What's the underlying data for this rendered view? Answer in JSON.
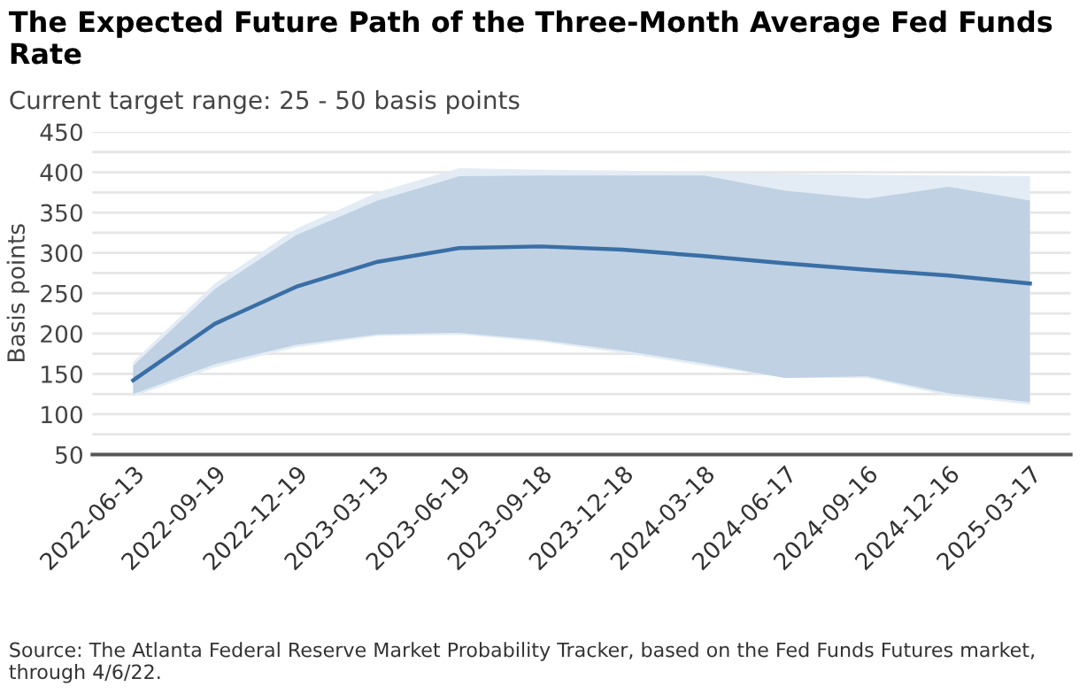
{
  "chart_data": {
    "type": "line",
    "title": "The Expected Future Path of the Three-Month Average Fed Funds Rate",
    "subtitle": "Current target range: 25 - 50 basis points",
    "ylabel": "Basis points",
    "annotations": [
      "Source: The Atlanta Federal Reserve Market Probability Tracker, based on the Fed Funds Futures market, through 4/6/22."
    ],
    "categories": [
      "2022-06-13",
      "2022-09-19",
      "2022-12-19",
      "2023-03-13",
      "2023-06-19",
      "2023-09-18",
      "2023-12-18",
      "2024-03-18",
      "2024-06-17",
      "2024-09-16",
      "2024-12-16",
      "2025-03-17"
    ],
    "series": [
      {
        "color": "#e3ecf5",
        "values": [
          null,
          null,
          null,
          null,
          null,
          null,
          null,
          null,
          null,
          null,
          null,
          null
        ],
        "upper": [
          165,
          262,
          330,
          375,
          405,
          403,
          402,
          400,
          398,
          397,
          396,
          395
        ],
        "lower": [
          122,
          158,
          183,
          197,
          199,
          190,
          176,
          160,
          145,
          145,
          123,
          112
        ]
      },
      {
        "color": "#bfd1e3",
        "values": [
          null,
          null,
          null,
          null,
          null,
          null,
          null,
          null,
          null,
          null,
          null,
          null
        ],
        "upper": [
          160,
          255,
          322,
          365,
          395,
          396,
          396,
          396,
          377,
          367,
          382,
          365
        ],
        "lower": [
          125,
          162,
          186,
          199,
          201,
          192,
          179,
          163,
          145,
          147,
          126,
          115
        ]
      },
      {
        "color": "#3a6ea5",
        "values": [
          142,
          212,
          258,
          289,
          306,
          308,
          304,
          296,
          287,
          279,
          272,
          262
        ]
      }
    ],
    "ylim": [
      50,
      450
    ],
    "yticks": [
      50,
      {
        "value": 75,
        "label": null
      },
      100,
      {
        "value": 125,
        "label": null
      },
      150,
      {
        "value": 175,
        "label": null
      },
      200,
      {
        "value": 225,
        "label": null
      },
      250,
      {
        "value": 275,
        "label": null
      },
      300,
      {
        "value": 325,
        "label": null
      },
      350,
      {
        "value": 375,
        "label": null
      },
      400,
      {
        "value": 425,
        "label": null
      },
      450
    ],
    "grid": "y",
    "legend": false,
    "line_style": "solid",
    "marker": "none"
  }
}
